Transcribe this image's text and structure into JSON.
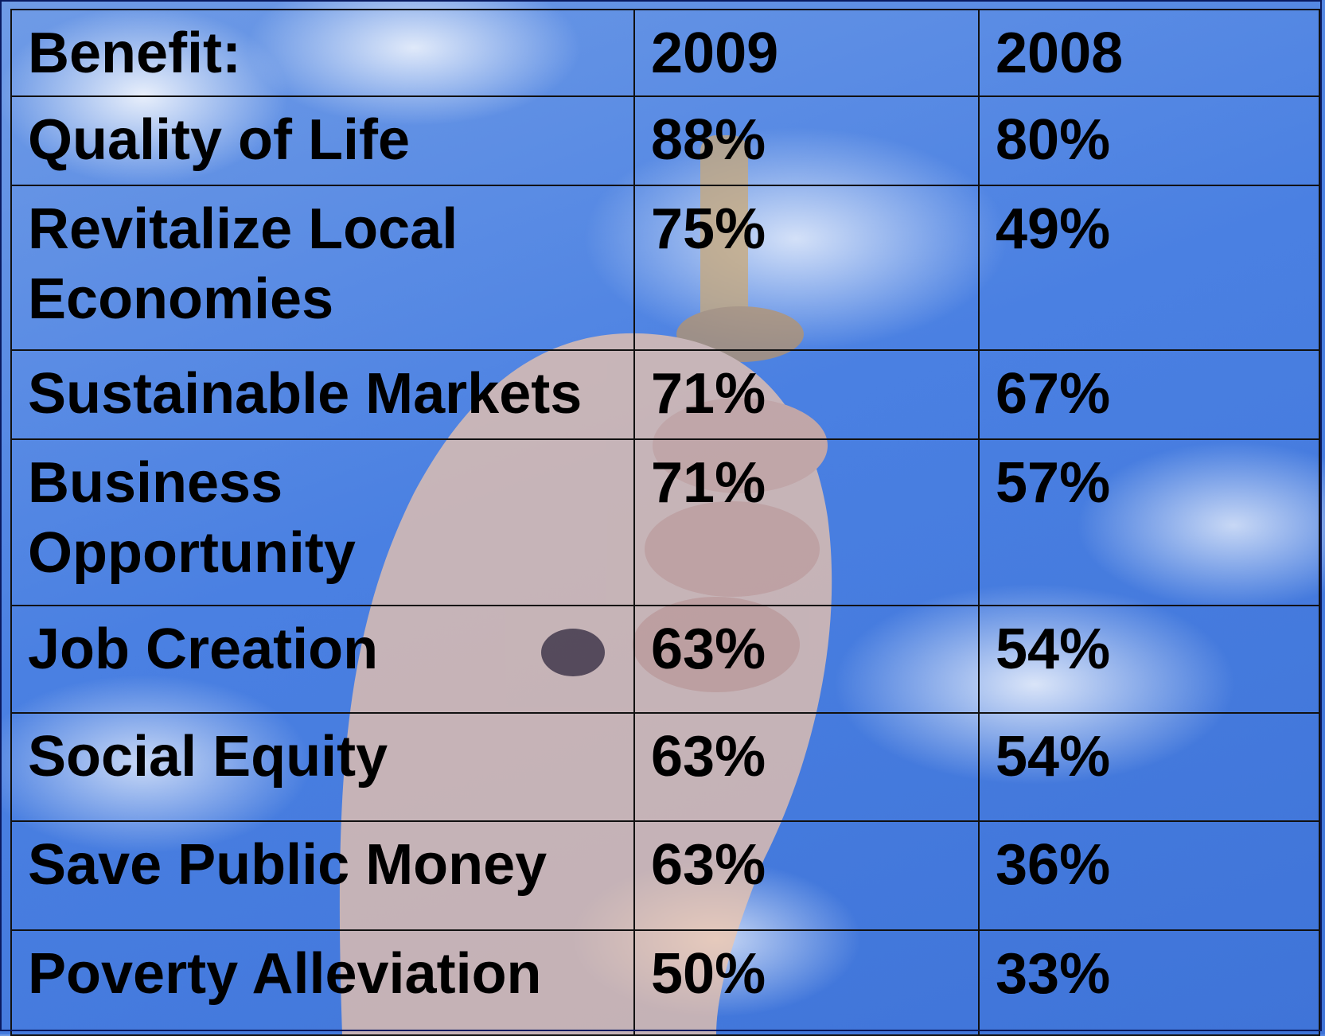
{
  "table": {
    "header": [
      "Benefit:",
      "2009",
      "2008"
    ],
    "rows": [
      [
        "Quality of Life",
        "88%",
        "80%"
      ],
      [
        "Revitalize Local Economies",
        "75%",
        "49%"
      ],
      [
        "Sustainable Markets",
        "71%",
        "67%"
      ],
      [
        "Business Opportunity",
        "71%",
        "57%"
      ],
      [
        "Job Creation",
        "63%",
        "54%"
      ],
      [
        "Social Equity",
        "63%",
        "54%"
      ],
      [
        "Save Public Money",
        "63%",
        "36%"
      ],
      [
        "Poverty Alleviation",
        "50%",
        "33%"
      ]
    ]
  }
}
